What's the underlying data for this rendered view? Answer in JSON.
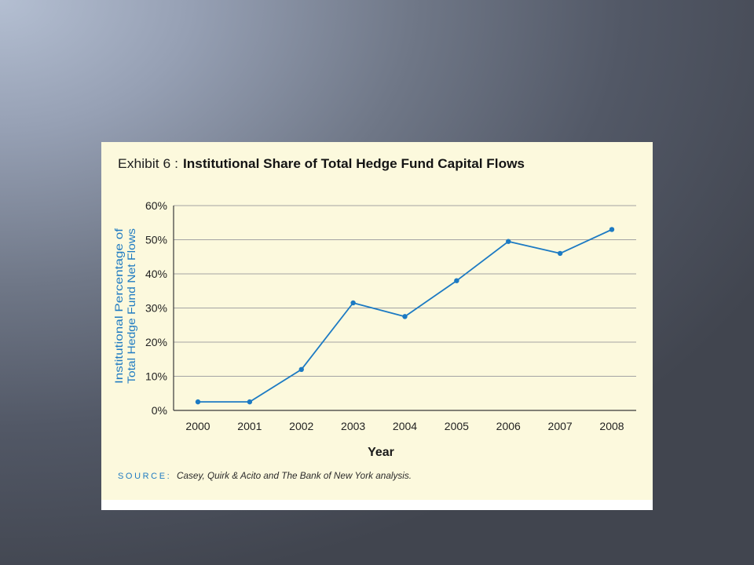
{
  "exhibit_label": "Exhibit 6 :",
  "source": {
    "label": "SOURCE:",
    "text": "Casey, Quirk & Acito and The Bank of New York analysis."
  },
  "colors": {
    "panel_background": "#fcf9dd",
    "series": "#1c7ac3",
    "accent_text": "#1f7bc2",
    "gridline": "#a3a3a3"
  },
  "chart_data": {
    "type": "line",
    "title": "Institutional Share of Total Hedge Fund Capital Flows",
    "xlabel": "Year",
    "ylabel": [
      "Institutional Percentage of",
      "Total Hedge Fund Net Flows"
    ],
    "categories": [
      "2000",
      "2001",
      "2002",
      "2003",
      "2004",
      "2005",
      "2006",
      "2007",
      "2008"
    ],
    "series": [
      {
        "values": [
          2.5,
          2.5,
          12,
          31.5,
          27.5,
          38,
          49.5,
          46,
          53
        ]
      }
    ],
    "ylim": [
      0,
      60
    ],
    "yticks": [
      0,
      10,
      20,
      30,
      40,
      50,
      60
    ],
    "ytick_labels": [
      "0%",
      "10%",
      "20%",
      "30%",
      "40%",
      "50%",
      "60%"
    ],
    "grid": true
  }
}
